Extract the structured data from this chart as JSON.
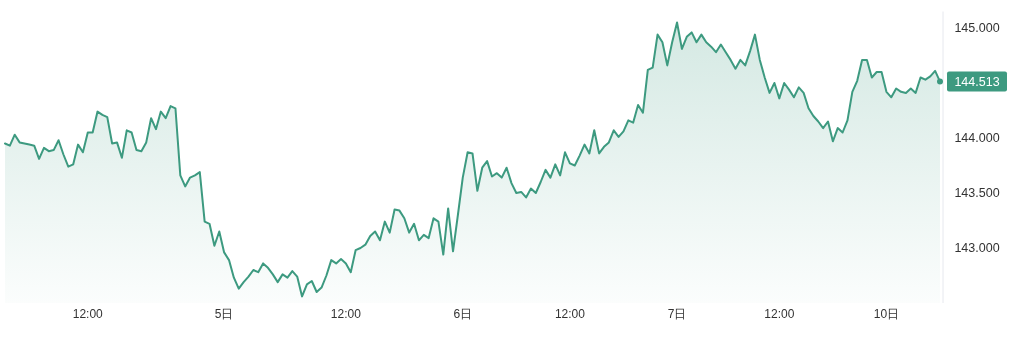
{
  "chart_data": {
    "type": "area",
    "color": "#3d9a80",
    "categories": [
      null,
      null,
      null,
      null,
      null,
      null,
      null,
      null,
      null,
      null,
      null,
      null,
      null,
      null,
      null,
      null,
      null,
      "12:00",
      null,
      null,
      null,
      null,
      null,
      null,
      null,
      null,
      null,
      null,
      null,
      null,
      null,
      null,
      null,
      null,
      null,
      null,
      null,
      null,
      null,
      null,
      null,
      null,
      null,
      null,
      null,
      "5日",
      null,
      null,
      null,
      null,
      null,
      null,
      null,
      null,
      null,
      null,
      null,
      null,
      null,
      null,
      null,
      null,
      null,
      null,
      null,
      null,
      null,
      null,
      null,
      null,
      "12:00",
      null,
      null,
      null,
      null,
      null,
      null,
      null,
      null,
      null,
      null,
      null,
      null,
      null,
      null,
      null,
      null,
      null,
      null,
      null,
      null,
      null,
      null,
      null,
      "6日",
      null,
      null,
      null,
      null,
      null,
      null,
      null,
      null,
      null,
      null,
      null,
      null,
      null,
      null,
      null,
      null,
      null,
      null,
      null,
      null,
      null,
      "12:00",
      null,
      null,
      null,
      null,
      null,
      null,
      null,
      null,
      null,
      null,
      null,
      null,
      null,
      null,
      null,
      null,
      null,
      null,
      null,
      null,
      null,
      "7日",
      null,
      null,
      null,
      null,
      null,
      null,
      null,
      null,
      null,
      null,
      null,
      null,
      null,
      null,
      null,
      null,
      null,
      null,
      null,
      null,
      "12:00",
      null,
      null,
      null,
      null,
      null,
      null,
      null,
      null,
      null,
      null,
      null,
      null,
      null,
      null,
      null,
      null,
      null,
      null,
      null,
      null,
      null,
      "10日",
      null,
      null,
      null,
      null,
      null,
      null,
      null,
      null,
      null,
      null,
      null
    ],
    "values": [
      143.95,
      143.93,
      144.03,
      143.96,
      143.95,
      143.94,
      143.93,
      143.81,
      143.91,
      143.88,
      143.89,
      143.98,
      143.85,
      143.74,
      143.76,
      143.94,
      143.87,
      144.05,
      144.05,
      144.24,
      144.21,
      144.19,
      143.95,
      143.96,
      143.82,
      144.07,
      144.05,
      143.89,
      143.88,
      143.96,
      144.18,
      144.08,
      144.24,
      144.18,
      144.29,
      144.27,
      143.66,
      143.56,
      143.64,
      143.66,
      143.69,
      143.24,
      143.22,
      143.02,
      143.15,
      142.96,
      142.89,
      142.73,
      142.63,
      142.69,
      142.74,
      142.8,
      142.78,
      142.86,
      142.82,
      142.76,
      142.69,
      142.76,
      142.73,
      142.79,
      142.74,
      142.56,
      142.67,
      142.7,
      142.6,
      142.64,
      142.75,
      142.89,
      142.86,
      142.9,
      142.86,
      142.78,
      142.98,
      143.0,
      143.03,
      143.11,
      143.15,
      143.07,
      143.24,
      143.14,
      143.35,
      143.34,
      143.27,
      143.14,
      143.22,
      143.07,
      143.12,
      143.09,
      143.27,
      143.24,
      142.94,
      143.36,
      142.97,
      143.3,
      143.64,
      143.87,
      143.86,
      143.52,
      143.73,
      143.79,
      143.65,
      143.68,
      143.64,
      143.73,
      143.59,
      143.5,
      143.51,
      143.46,
      143.54,
      143.5,
      143.6,
      143.71,
      143.64,
      143.76,
      143.66,
      143.87,
      143.77,
      143.75,
      143.84,
      143.94,
      143.86,
      144.07,
      143.86,
      143.92,
      143.96,
      144.07,
      144.01,
      144.06,
      144.16,
      144.14,
      144.3,
      144.23,
      144.62,
      144.64,
      144.94,
      144.87,
      144.66,
      144.87,
      145.05,
      144.81,
      144.92,
      144.96,
      144.87,
      144.94,
      144.87,
      144.83,
      144.78,
      144.85,
      144.78,
      144.71,
      144.63,
      144.71,
      144.66,
      144.79,
      144.94,
      144.71,
      144.55,
      144.41,
      144.5,
      144.36,
      144.5,
      144.44,
      144.37,
      144.46,
      144.41,
      144.27,
      144.2,
      144.15,
      144.09,
      144.15,
      143.97,
      144.09,
      144.05,
      144.16,
      144.42,
      144.52,
      144.71,
      144.71,
      144.55,
      144.6,
      144.6,
      144.42,
      144.37,
      144.45,
      144.42,
      144.41,
      144.45,
      144.41,
      144.55,
      144.53,
      144.56,
      144.61,
      144.513
    ],
    "yticks": [
      {
        "value": 143,
        "label": "143.000"
      },
      {
        "value": 143.5,
        "label": "143.500"
      },
      {
        "value": 144,
        "label": "144.000"
      },
      {
        "value": 145,
        "label": "145.000"
      }
    ],
    "ylim": [
      142.5,
      145.15
    ],
    "annotations": [
      "144.513"
    ],
    "grid": false
  }
}
